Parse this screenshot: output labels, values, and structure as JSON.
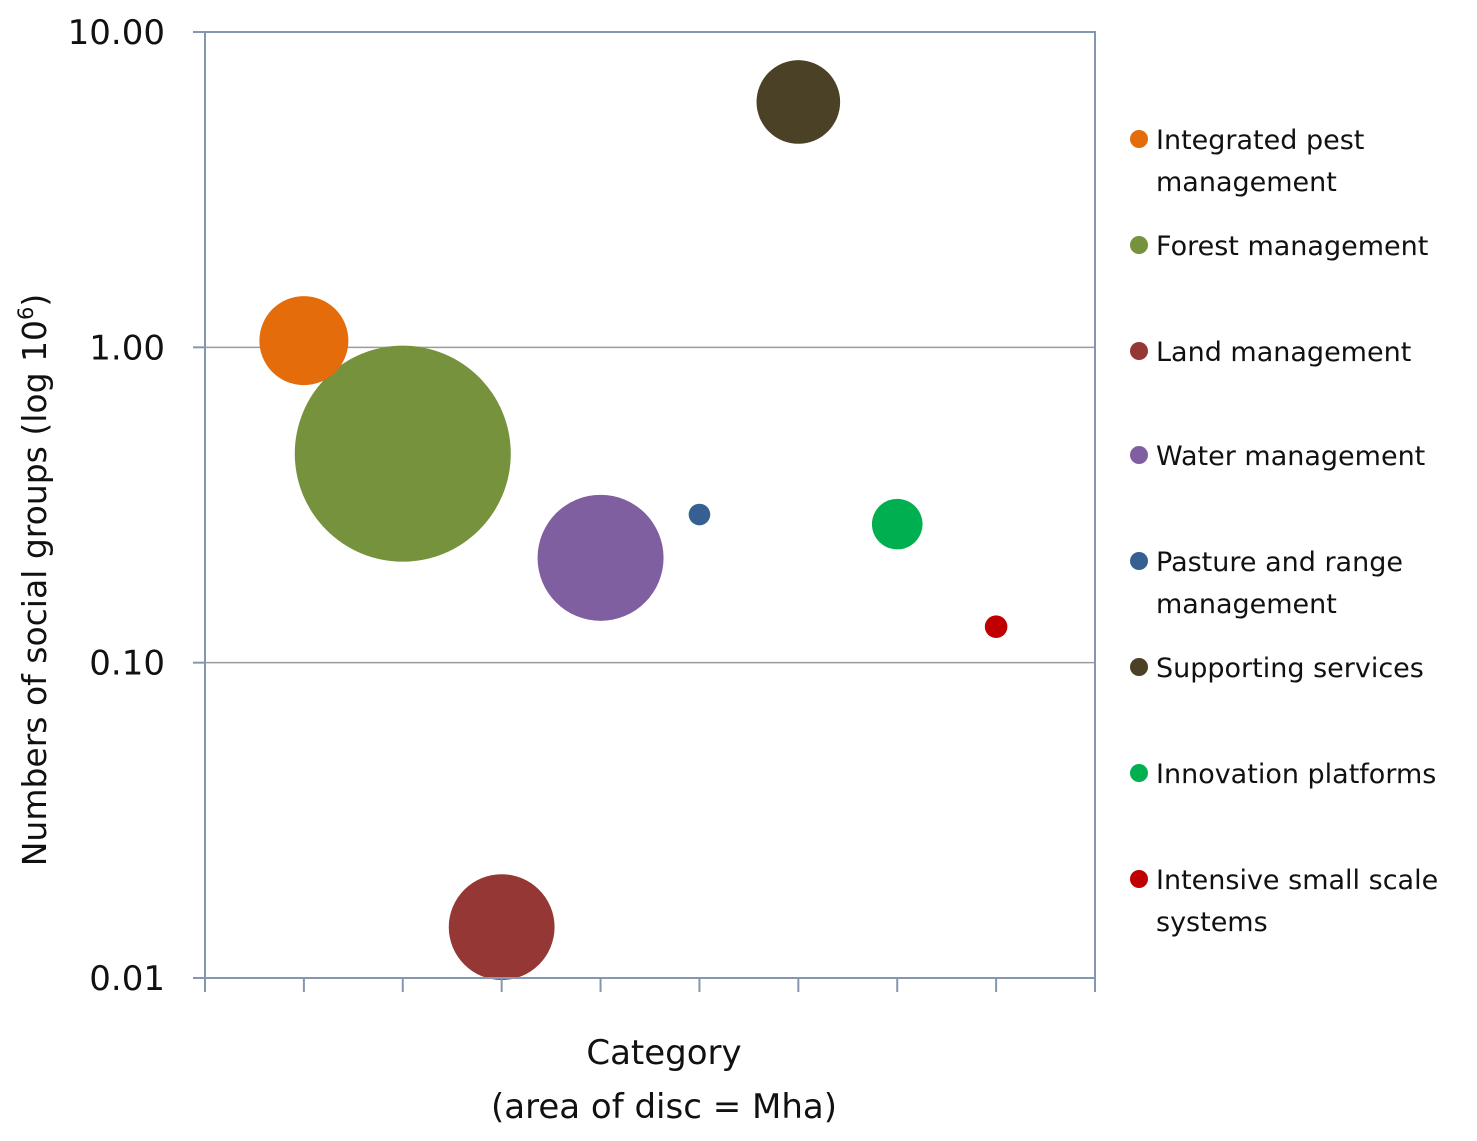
{
  "chart_data": {
    "type": "bubble",
    "xlabel_line1": "Category",
    "xlabel_line2": "(area of disc = Mha)",
    "ylabel": "Numbers of social groups (log 10",
    "ylabel_sup": "6",
    "ylabel_close": ")",
    "yscale": "log",
    "ylim": [
      0.01,
      10
    ],
    "yticks": [
      "10.00",
      "1.00",
      "0.10",
      "0.01"
    ],
    "ytick_values": [
      10,
      1,
      0.1,
      0.01
    ],
    "xlim": [
      0,
      9
    ],
    "grid": "horizontal",
    "legend_position": "right",
    "series": [
      {
        "name": "Integrated pest management",
        "x": 1,
        "y": 1.05,
        "size_rel": 0.17,
        "color": "#E46C0A"
      },
      {
        "name": "Forest management",
        "x": 2,
        "y": 0.46,
        "size_rel": 1.0,
        "color": "#76923C"
      },
      {
        "name": "Land management",
        "x": 3,
        "y": 0.0145,
        "size_rel": 0.24,
        "color": "#953735"
      },
      {
        "name": "Water management",
        "x": 4,
        "y": 0.215,
        "size_rel": 0.34,
        "color": "#7F5F9F"
      },
      {
        "name": "Pasture and range management",
        "x": 5,
        "y": 0.295,
        "size_rel": 0.01,
        "color": "#366092"
      },
      {
        "name": "Supporting services",
        "x": 6,
        "y": 6.0,
        "size_rel": 0.15,
        "color": "#4A4126"
      },
      {
        "name": "Innovation platforms",
        "x": 7,
        "y": 0.275,
        "size_rel": 0.055,
        "color": "#00B050"
      },
      {
        "name": "Intensive small scale systems",
        "x": 8,
        "y": 0.13,
        "size_rel": 0.011,
        "color": "#C00000"
      }
    ]
  }
}
